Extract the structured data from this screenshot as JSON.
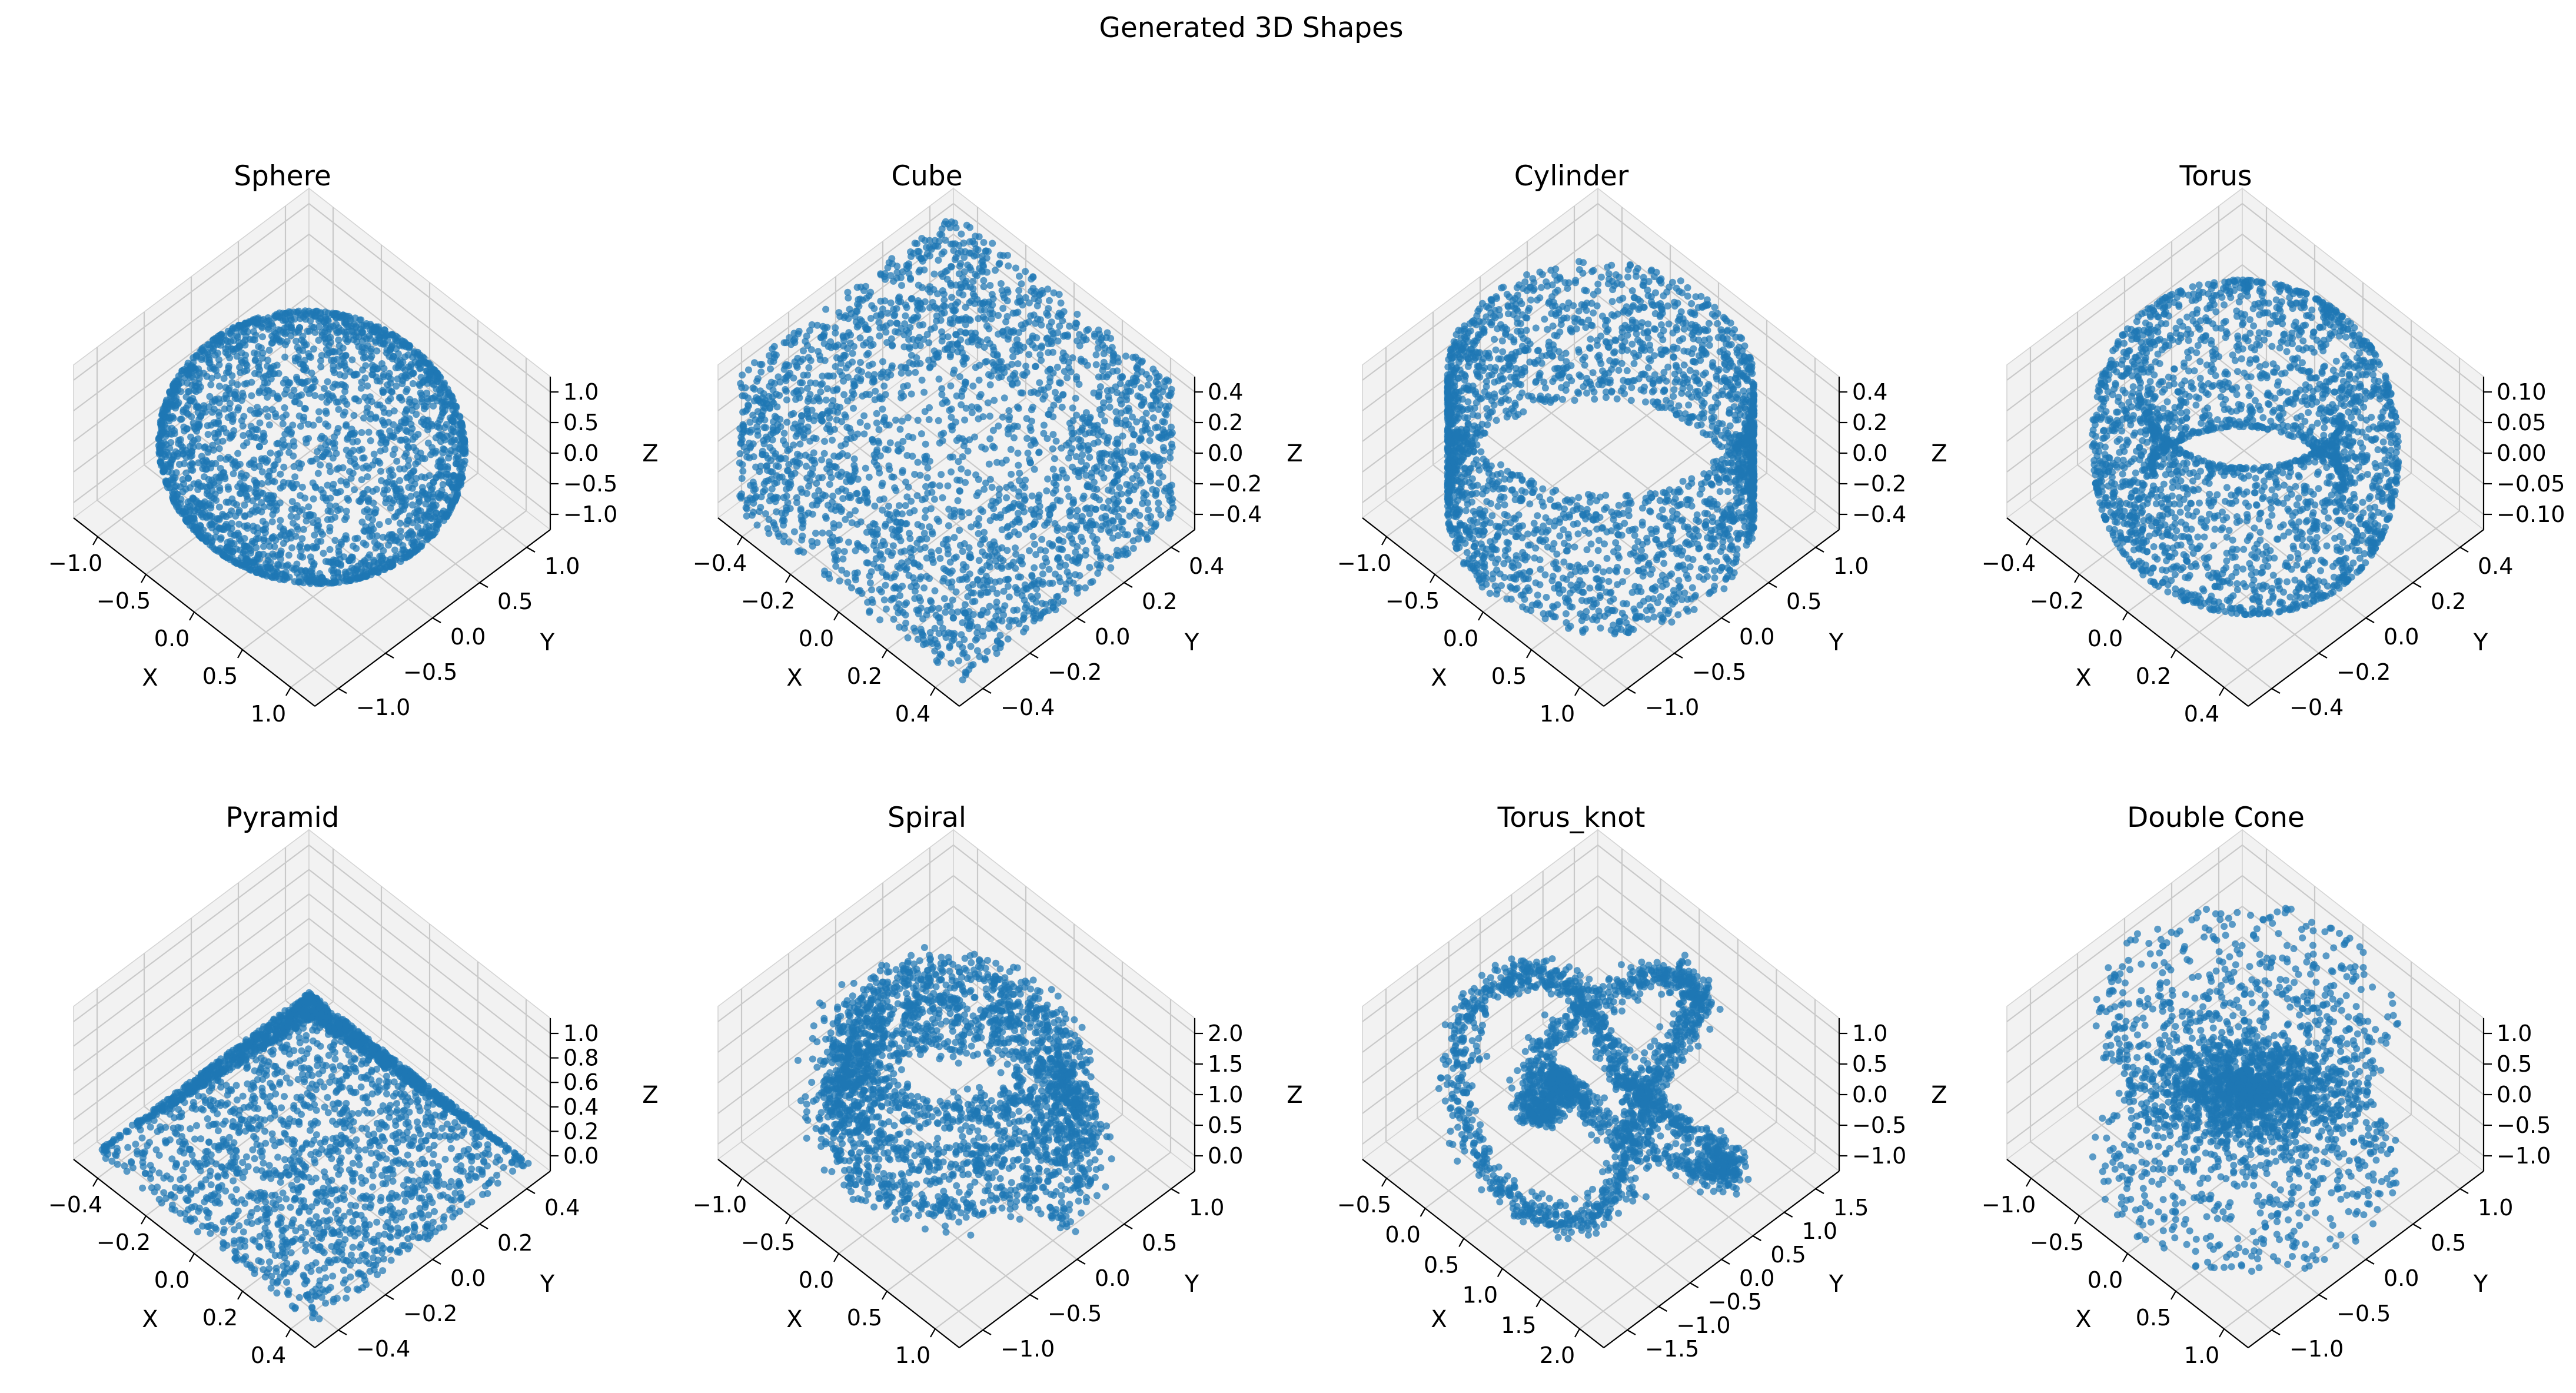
{
  "figure": {
    "title": "Generated 3D Shapes"
  },
  "theme": {
    "point_color": "#1f77b4",
    "pane_color": "#f2f2f2"
  },
  "chart_data": [
    {
      "type": "scatter",
      "shape": "sphere",
      "title": "Sphere",
      "xlabel": "X",
      "ylabel": "Y",
      "zlabel": "Z",
      "xlim": [
        -1.1,
        1.1
      ],
      "ylim": [
        -1.1,
        1.1
      ],
      "zlim": [
        -1.1,
        1.1
      ],
      "xticks": [
        "−1.0",
        "−0.5",
        "0.0",
        "0.5",
        "1.0"
      ],
      "yticks": [
        "−1.0",
        "−0.5",
        "0.0",
        "0.5",
        "1.0"
      ],
      "zticks": [
        "−1.0",
        "−0.5",
        "0.0",
        "0.5",
        "1.0"
      ]
    },
    {
      "type": "scatter",
      "shape": "cube",
      "title": "Cube",
      "xlabel": "X",
      "ylabel": "Y",
      "zlabel": "Z",
      "xlim": [
        -0.55,
        0.55
      ],
      "ylim": [
        -0.55,
        0.55
      ],
      "zlim": [
        -0.55,
        0.55
      ],
      "xticks": [
        "−0.4",
        "−0.2",
        "0.0",
        "0.2",
        "0.4"
      ],
      "yticks": [
        "−0.4",
        "−0.2",
        "0.0",
        "0.2",
        "0.4"
      ],
      "zticks": [
        "−0.4",
        "−0.2",
        "0.0",
        "0.2",
        "0.4"
      ]
    },
    {
      "type": "scatter",
      "shape": "cylinder",
      "title": "Cylinder",
      "xlabel": "X",
      "ylabel": "Y",
      "zlabel": "Z",
      "xlim": [
        -1.1,
        1.1
      ],
      "ylim": [
        -1.1,
        1.1
      ],
      "zlim": [
        -0.55,
        0.55
      ],
      "xticks": [
        "−1.0",
        "−0.5",
        "0.0",
        "0.5",
        "1.0"
      ],
      "yticks": [
        "−1.0",
        "−0.5",
        "0.0",
        "0.5",
        "1.0"
      ],
      "zticks": [
        "−0.4",
        "−0.2",
        "0.0",
        "0.2",
        "0.4"
      ]
    },
    {
      "type": "scatter",
      "shape": "torus",
      "title": "Torus",
      "xlabel": "X",
      "ylabel": "Y",
      "zlabel": "Z",
      "xlim": [
        -0.55,
        0.55
      ],
      "ylim": [
        -0.55,
        0.55
      ],
      "zlim": [
        -0.11,
        0.11
      ],
      "xticks": [
        "−0.4",
        "−0.2",
        "0.0",
        "0.2",
        "0.4"
      ],
      "yticks": [
        "−0.4",
        "−0.2",
        "0.0",
        "0.2",
        "0.4"
      ],
      "zticks": [
        "−0.10",
        "−0.05",
        "0.00",
        "0.05",
        "0.10"
      ]
    },
    {
      "type": "scatter",
      "shape": "pyramid",
      "title": "Pyramid",
      "xlabel": "X",
      "ylabel": "Y",
      "zlabel": "Z",
      "xlim": [
        -0.55,
        0.55
      ],
      "ylim": [
        -0.55,
        0.55
      ],
      "zlim": [
        -0.05,
        1.05
      ],
      "xticks": [
        "−0.4",
        "−0.2",
        "0.0",
        "0.2",
        "0.4"
      ],
      "yticks": [
        "−0.4",
        "−0.2",
        "0.0",
        "0.2",
        "0.4"
      ],
      "zticks": [
        "0.0",
        "0.2",
        "0.4",
        "0.6",
        "0.8",
        "1.0"
      ]
    },
    {
      "type": "scatter",
      "shape": "spiral",
      "title": "Spiral",
      "xlabel": "X",
      "ylabel": "Y",
      "zlabel": "Z",
      "xlim": [
        -1.3,
        1.3
      ],
      "ylim": [
        -1.3,
        1.3
      ],
      "zlim": [
        -0.3,
        2.3
      ],
      "xticks": [
        "−1.0",
        "−0.5",
        "0.0",
        "0.5",
        "1.0"
      ],
      "yticks": [
        "−1.0",
        "−0.5",
        "0.0",
        "0.5",
        "1.0"
      ],
      "zticks": [
        "0.0",
        "0.5",
        "1.0",
        "1.5",
        "2.0"
      ]
    },
    {
      "type": "scatter",
      "shape": "torus_knot",
      "title": "Torus_knot",
      "xlabel": "X",
      "ylabel": "Y",
      "zlabel": "Z",
      "xlim": [
        -0.7,
        2.3
      ],
      "ylim": [
        -1.8,
        1.8
      ],
      "zlim": [
        -1.3,
        1.3
      ],
      "xticks": [
        "−0.5",
        "0.0",
        "0.5",
        "1.0",
        "1.5",
        "2.0"
      ],
      "yticks": [
        "−1.5",
        "−1.0",
        "−0.5",
        "0.0",
        "0.5",
        "1.0",
        "1.5"
      ],
      "zticks": [
        "−1.0",
        "−0.5",
        "0.0",
        "0.5",
        "1.0"
      ]
    },
    {
      "type": "scatter",
      "shape": "double_cone",
      "title": "Double Cone",
      "xlabel": "X",
      "ylabel": "Y",
      "zlabel": "Z",
      "xlim": [
        -1.1,
        1.1
      ],
      "ylim": [
        -1.1,
        1.1
      ],
      "zlim": [
        -1.1,
        1.1
      ],
      "xticks": [
        "−1.0",
        "−0.5",
        "0.0",
        "0.5",
        "1.0"
      ],
      "yticks": [
        "−1.0",
        "−0.5",
        "0.0",
        "0.5",
        "1.0"
      ],
      "zticks": [
        "−1.0",
        "−0.5",
        "0.0",
        "0.5",
        "1.0"
      ]
    }
  ]
}
